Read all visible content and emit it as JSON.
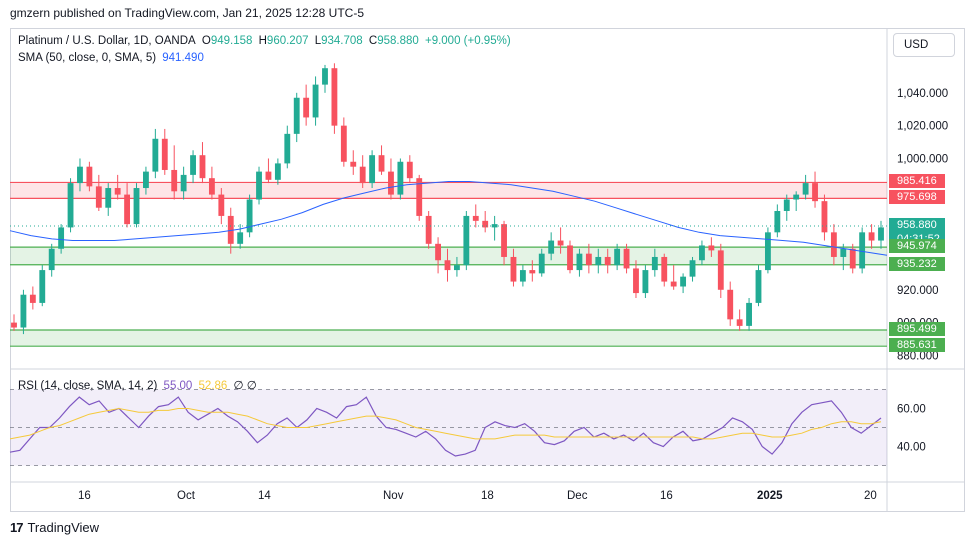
{
  "header": {
    "publisher": "gmzern published on TradingView.com, Jan 21, 2025 12:28 UTC-5"
  },
  "legend": {
    "symbol": "Platinum / U.S. Dollar, 1D, OANDA",
    "o_label": "O",
    "o_value": "949.158",
    "h_label": "H",
    "h_value": "960.207",
    "l_label": "L",
    "l_value": "934.708",
    "c_label": "C",
    "c_value": "958.880",
    "change": "+9.000 (+0.95%)",
    "sma_label": "SMA (50, close, 0, SMA, 5)",
    "sma_value": "941.490",
    "rsi_label": "RSI (14, close, SMA, 14, 2)",
    "rsi_value": "55.00",
    "rsi_sma_value": "52.86",
    "rsi_extra": "∅  ∅"
  },
  "currency_button": "USD",
  "brand": {
    "name": "TradingView"
  },
  "price_tags": [
    {
      "label": "985.416",
      "value": 985.416,
      "color": "#f7525f",
      "text_color": "#ffffff"
    },
    {
      "label": "975.698",
      "value": 975.698,
      "color": "#f7525f",
      "text_color": "#ffffff"
    },
    {
      "label": "958.880",
      "value": 958.88,
      "color": "#22ab94",
      "text_color": "#ffffff"
    },
    {
      "label": "04:31:52",
      "value": 950.5,
      "color": "#22ab94",
      "text_color": "#ffffff"
    },
    {
      "label": "945.974",
      "value": 945.974,
      "color": "#4caf50",
      "text_color": "#ffffff"
    },
    {
      "label": "935.232",
      "value": 935.232,
      "color": "#4caf50",
      "text_color": "#ffffff"
    },
    {
      "label": "895.499",
      "value": 895.499,
      "color": "#4caf50",
      "text_color": "#ffffff"
    },
    {
      "label": "885.631",
      "value": 885.631,
      "color": "#4caf50",
      "text_color": "#ffffff"
    }
  ],
  "chart_data": {
    "type": "candlestick",
    "price_axis": {
      "ticks": [
        "1,040.000",
        "1,020.000",
        "1,000.000",
        "920.000",
        "900.000",
        "880.000"
      ],
      "tick_values": [
        1040,
        1020,
        1000,
        920,
        900,
        880
      ],
      "range": [
        876,
        1060
      ]
    },
    "time_axis": {
      "labels": [
        "16",
        "Oct",
        "14",
        "Nov",
        "18",
        "Dec",
        "16",
        "2025",
        "20"
      ]
    },
    "zones": [
      {
        "type": "resistance",
        "from": 975.698,
        "to": 985.416,
        "color": "#f7525f"
      },
      {
        "type": "support",
        "from": 935.232,
        "to": 945.974,
        "color": "#4caf50"
      },
      {
        "type": "support",
        "from": 885.631,
        "to": 895.499,
        "color": "#4caf50"
      }
    ],
    "last_price": 958.88,
    "candles": [
      [
        900,
        905,
        895,
        897
      ],
      [
        897,
        920,
        893,
        917
      ],
      [
        917,
        922,
        908,
        912
      ],
      [
        912,
        935,
        910,
        932
      ],
      [
        932,
        948,
        928,
        945
      ],
      [
        945,
        960,
        942,
        958
      ],
      [
        958,
        988,
        955,
        985
      ],
      [
        985,
        1000,
        980,
        995
      ],
      [
        995,
        998,
        980,
        983
      ],
      [
        983,
        990,
        968,
        970
      ],
      [
        970,
        985,
        965,
        982
      ],
      [
        982,
        990,
        975,
        978
      ],
      [
        978,
        985,
        958,
        960
      ],
      [
        960,
        985,
        958,
        982
      ],
      [
        982,
        995,
        978,
        992
      ],
      [
        992,
        1018,
        988,
        1012
      ],
      [
        1012,
        1018,
        990,
        993
      ],
      [
        993,
        1008,
        975,
        980
      ],
      [
        980,
        995,
        975,
        990
      ],
      [
        990,
        1005,
        985,
        1002
      ],
      [
        1002,
        1010,
        985,
        988
      ],
      [
        988,
        995,
        975,
        978
      ],
      [
        978,
        982,
        960,
        965
      ],
      [
        965,
        970,
        942,
        948
      ],
      [
        948,
        960,
        945,
        955
      ],
      [
        955,
        978,
        952,
        975
      ],
      [
        975,
        995,
        972,
        992
      ],
      [
        992,
        1000,
        985,
        987
      ],
      [
        987,
        1000,
        984,
        997
      ],
      [
        997,
        1020,
        994,
        1015
      ],
      [
        1015,
        1040,
        1010,
        1037
      ],
      [
        1037,
        1045,
        1020,
        1025
      ],
      [
        1025,
        1050,
        1020,
        1045
      ],
      [
        1045,
        1057,
        1040,
        1055
      ],
      [
        1055,
        1058,
        1015,
        1020
      ],
      [
        1020,
        1025,
        995,
        998
      ],
      [
        998,
        1005,
        990,
        995
      ],
      [
        995,
        1002,
        982,
        985
      ],
      [
        985,
        1005,
        982,
        1002
      ],
      [
        1002,
        1008,
        990,
        992
      ],
      [
        992,
        1000,
        975,
        978
      ],
      [
        978,
        1000,
        975,
        998
      ],
      [
        998,
        1002,
        985,
        988
      ],
      [
        988,
        990,
        962,
        965
      ],
      [
        965,
        968,
        945,
        948
      ],
      [
        948,
        952,
        930,
        938
      ],
      [
        938,
        945,
        925,
        932
      ],
      [
        932,
        940,
        928,
        935
      ],
      [
        935,
        968,
        932,
        965
      ],
      [
        965,
        972,
        958,
        962
      ],
      [
        962,
        968,
        955,
        958
      ],
      [
        958,
        965,
        950,
        960
      ],
      [
        960,
        962,
        935,
        940
      ],
      [
        940,
        945,
        922,
        925
      ],
      [
        925,
        935,
        922,
        932
      ],
      [
        932,
        938,
        925,
        930
      ],
      [
        930,
        945,
        928,
        942
      ],
      [
        942,
        955,
        938,
        950
      ],
      [
        950,
        958,
        942,
        947
      ],
      [
        947,
        950,
        930,
        932
      ],
      [
        932,
        945,
        928,
        942
      ],
      [
        942,
        948,
        930,
        935
      ],
      [
        935,
        945,
        930,
        940
      ],
      [
        940,
        945,
        930,
        935
      ],
      [
        935,
        948,
        932,
        945
      ],
      [
        945,
        948,
        930,
        933
      ],
      [
        933,
        938,
        915,
        918
      ],
      [
        918,
        935,
        915,
        932
      ],
      [
        932,
        945,
        928,
        940
      ],
      [
        940,
        942,
        922,
        925
      ],
      [
        925,
        935,
        920,
        922
      ],
      [
        922,
        930,
        918,
        928
      ],
      [
        928,
        940,
        925,
        938
      ],
      [
        938,
        950,
        935,
        947
      ],
      [
        947,
        952,
        940,
        944
      ],
      [
        944,
        948,
        915,
        920
      ],
      [
        920,
        925,
        898,
        902
      ],
      [
        902,
        908,
        895,
        898
      ],
      [
        898,
        915,
        895,
        912
      ],
      [
        912,
        935,
        910,
        932
      ],
      [
        932,
        958,
        930,
        955
      ],
      [
        955,
        972,
        952,
        968
      ],
      [
        968,
        978,
        962,
        975
      ],
      [
        975,
        980,
        968,
        978
      ],
      [
        978,
        990,
        975,
        985
      ],
      [
        985,
        992,
        970,
        974
      ],
      [
        974,
        978,
        950,
        955
      ],
      [
        955,
        960,
        935,
        940
      ],
      [
        940,
        948,
        932,
        945
      ],
      [
        945,
        948,
        930,
        933
      ],
      [
        933,
        958,
        930,
        955
      ],
      [
        955,
        960,
        945,
        950
      ],
      [
        950,
        962,
        945,
        958
      ]
    ],
    "sma50": [
      956,
      953,
      951,
      950,
      950,
      950,
      951,
      952,
      953,
      954,
      955,
      957,
      960,
      963,
      967,
      972,
      976,
      979,
      982,
      984,
      985,
      986,
      986,
      985,
      984,
      982,
      980,
      977,
      974,
      970,
      966,
      962,
      958,
      955,
      953,
      952,
      951,
      950,
      949,
      947,
      945,
      943,
      941
    ],
    "rsi": {
      "range": [
        25,
        75
      ],
      "ticks": [
        "60.00",
        "40.00"
      ],
      "tick_values": [
        60,
        40
      ],
      "band": [
        30,
        70
      ],
      "values": [
        37,
        38,
        44,
        50,
        50,
        55,
        61,
        66,
        62,
        64,
        58,
        60,
        55,
        50,
        56,
        61,
        62,
        66,
        58,
        54,
        57,
        60,
        56,
        53,
        48,
        42,
        46,
        52,
        55,
        50,
        54,
        60,
        58,
        55,
        61,
        62,
        66,
        56,
        50,
        49,
        47,
        45,
        48,
        44,
        38,
        35,
        36,
        38,
        50,
        53,
        51,
        50,
        52,
        48,
        42,
        41,
        43,
        48,
        50,
        45,
        47,
        44,
        46,
        43,
        47,
        42,
        40,
        45,
        48,
        43,
        44,
        47,
        50,
        55,
        53,
        49,
        40,
        36,
        42,
        52,
        58,
        62,
        63,
        64,
        58,
        50,
        47,
        51,
        55
      ],
      "sma": [
        44,
        45,
        46,
        48,
        50,
        51,
        53,
        55,
        57,
        58,
        59,
        60,
        59,
        58,
        58,
        59,
        59,
        60,
        60,
        59,
        58,
        58,
        58,
        57,
        56,
        54,
        52,
        51,
        50,
        50,
        50,
        51,
        52,
        53,
        54,
        55,
        56,
        56,
        55,
        54,
        52,
        50,
        49,
        48,
        47,
        46,
        45,
        44,
        44,
        44,
        45,
        46,
        46,
        46,
        46,
        45,
        45,
        45,
        45,
        45,
        45,
        45,
        45,
        45,
        45,
        45,
        45,
        45,
        45,
        45,
        44,
        44,
        45,
        46,
        47,
        47,
        46,
        45,
        45,
        46,
        47,
        49,
        50,
        52,
        53,
        53,
        52,
        52,
        53
      ]
    }
  }
}
